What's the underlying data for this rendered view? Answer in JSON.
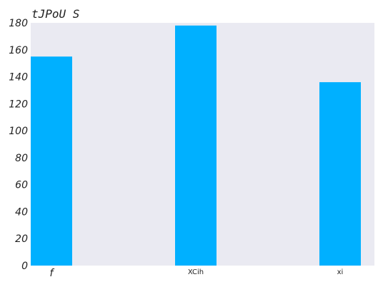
{
  "chart_data": {
    "type": "bar",
    "title": "tJPoU S",
    "categories": [
      "f",
      "XCih",
      "xi"
    ],
    "values": [
      155,
      178,
      136
    ],
    "ylim": [
      0,
      180
    ],
    "yticks": [
      0,
      20,
      40,
      60,
      80,
      100,
      120,
      140,
      160,
      180
    ],
    "xlabel": "",
    "ylabel": "",
    "grid": false,
    "legend": "none",
    "colors": {
      "bar": "#00b0ff",
      "plot_background": "#eaeaf2"
    }
  }
}
